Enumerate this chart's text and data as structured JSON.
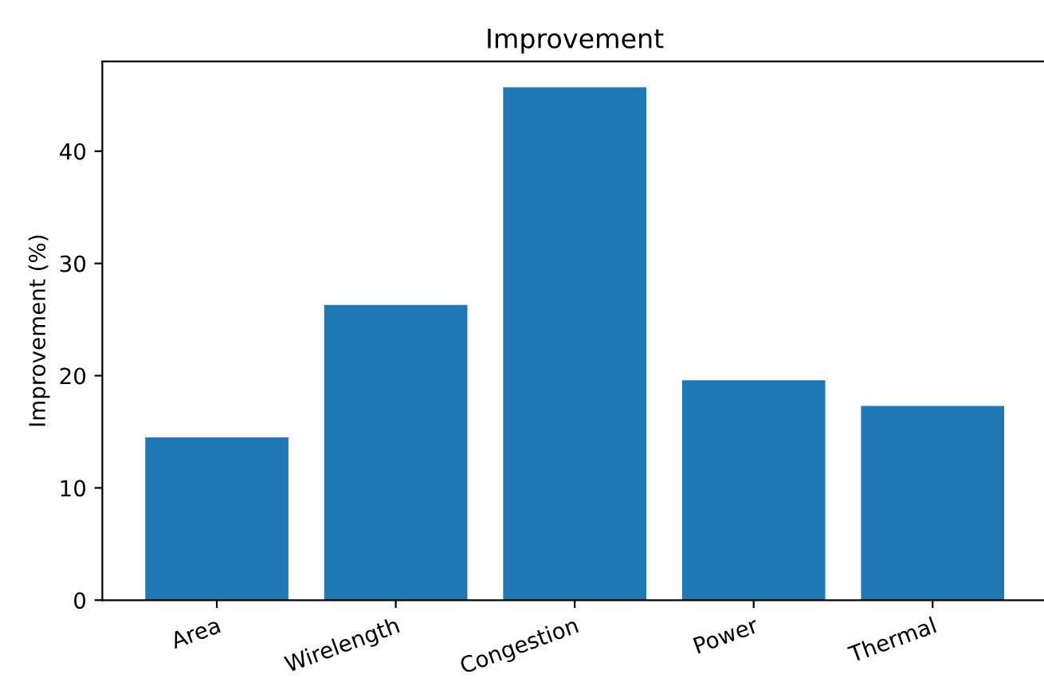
{
  "chart_data": {
    "type": "bar",
    "title": "Improvement",
    "ylabel": "Improvement (%)",
    "categories": [
      "Area",
      "Wirelength",
      "Congestion",
      "Power",
      "Thermal"
    ],
    "values": [
      14.5,
      26.3,
      45.7,
      19.6,
      17.3
    ],
    "color": "#1f77b4",
    "ylim": [
      0,
      48
    ],
    "yticks": [
      0,
      10,
      20,
      30,
      40
    ],
    "grid": false
  }
}
